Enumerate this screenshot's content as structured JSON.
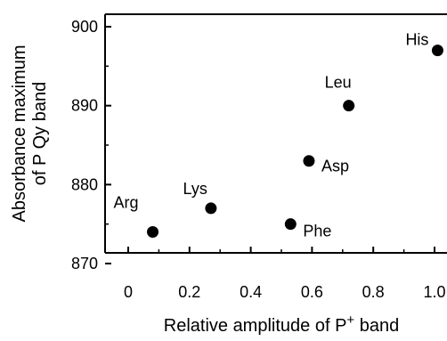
{
  "chart_data": {
    "type": "scatter",
    "xlabel": "Relative amplitude of P",
    "xlabel_sup": "+",
    "xlabel_tail": " band",
    "ylabel_line1": "Absorbance maximum",
    "ylabel_line2": "of P Qy band",
    "xlim": [
      -0.1,
      1.0
    ],
    "ylim": [
      868,
      902
    ],
    "x_ticks": [
      0,
      0.2,
      0.4,
      0.6,
      0.8,
      1.0
    ],
    "x_tick_labels": [
      "0",
      "0.2",
      "0.4",
      "0.6",
      "0.8",
      "1.0"
    ],
    "y_ticks": [
      870,
      880,
      890,
      900
    ],
    "y_tick_labels": [
      "870",
      "880",
      "890",
      "900"
    ],
    "grid": false,
    "points": [
      {
        "label": "Arg",
        "x": 0.08,
        "y": 874.0
      },
      {
        "label": "Lys",
        "x": 0.27,
        "y": 877.0
      },
      {
        "label": "Phe",
        "x": 0.53,
        "y": 875.0
      },
      {
        "label": "Asp",
        "x": 0.59,
        "y": 883.0
      },
      {
        "label": "Leu",
        "x": 0.72,
        "y": 890.0
      },
      {
        "label": "His",
        "x": 1.01,
        "y": 897.0
      }
    ]
  }
}
